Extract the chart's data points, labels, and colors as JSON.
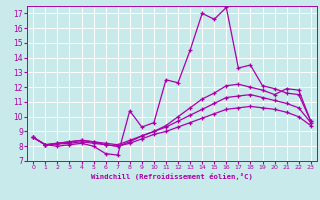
{
  "bg_color": "#c8eaea",
  "grid_color": "#ffffff",
  "line_color": "#aa00aa",
  "xlabel": "Windchill (Refroidissement éolien,°C)",
  "xlim": [
    -0.5,
    23.5
  ],
  "ylim": [
    7,
    17.5
  ],
  "yticks": [
    7,
    8,
    9,
    10,
    11,
    12,
    13,
    14,
    15,
    16,
    17
  ],
  "xticks": [
    0,
    1,
    2,
    3,
    4,
    5,
    6,
    7,
    8,
    9,
    10,
    11,
    12,
    13,
    14,
    15,
    16,
    17,
    18,
    19,
    20,
    21,
    22,
    23
  ],
  "line1_x": [
    0,
    1,
    2,
    3,
    4,
    5,
    6,
    7,
    8,
    9,
    10,
    11,
    12,
    13,
    14,
    15,
    16,
    17,
    18,
    19,
    20,
    21,
    22,
    23
  ],
  "line1_y": [
    8.6,
    8.1,
    8.0,
    8.1,
    8.2,
    8.0,
    7.5,
    7.4,
    10.4,
    9.3,
    9.6,
    12.5,
    12.3,
    14.5,
    17.0,
    16.6,
    17.4,
    13.3,
    13.5,
    12.1,
    11.9,
    11.6,
    11.5,
    9.7
  ],
  "line2_x": [
    0,
    1,
    2,
    3,
    4,
    5,
    6,
    7,
    8,
    9,
    10,
    11,
    12,
    13,
    14,
    15,
    16,
    17,
    18,
    19,
    20,
    21,
    22,
    23
  ],
  "line2_y": [
    8.6,
    8.1,
    8.2,
    8.3,
    8.4,
    8.3,
    8.1,
    8.0,
    8.3,
    8.7,
    9.0,
    9.4,
    10.0,
    10.6,
    11.2,
    11.6,
    12.1,
    12.2,
    12.0,
    11.8,
    11.5,
    11.9,
    11.8,
    9.7
  ],
  "line3_x": [
    0,
    1,
    2,
    3,
    4,
    5,
    6,
    7,
    8,
    9,
    10,
    11,
    12,
    13,
    14,
    15,
    16,
    17,
    18,
    19,
    20,
    21,
    22,
    23
  ],
  "line3_y": [
    8.6,
    8.1,
    8.2,
    8.3,
    8.4,
    8.3,
    8.2,
    8.1,
    8.4,
    8.7,
    9.0,
    9.3,
    9.7,
    10.1,
    10.5,
    10.9,
    11.3,
    11.4,
    11.5,
    11.3,
    11.1,
    10.9,
    10.6,
    9.6
  ],
  "line4_x": [
    0,
    1,
    2,
    3,
    4,
    5,
    6,
    7,
    8,
    9,
    10,
    11,
    12,
    13,
    14,
    15,
    16,
    17,
    18,
    19,
    20,
    21,
    22,
    23
  ],
  "line4_y": [
    8.6,
    8.1,
    8.15,
    8.2,
    8.3,
    8.2,
    8.1,
    8.0,
    8.2,
    8.5,
    8.8,
    9.0,
    9.3,
    9.6,
    9.9,
    10.2,
    10.5,
    10.6,
    10.7,
    10.6,
    10.5,
    10.3,
    10.0,
    9.4
  ]
}
